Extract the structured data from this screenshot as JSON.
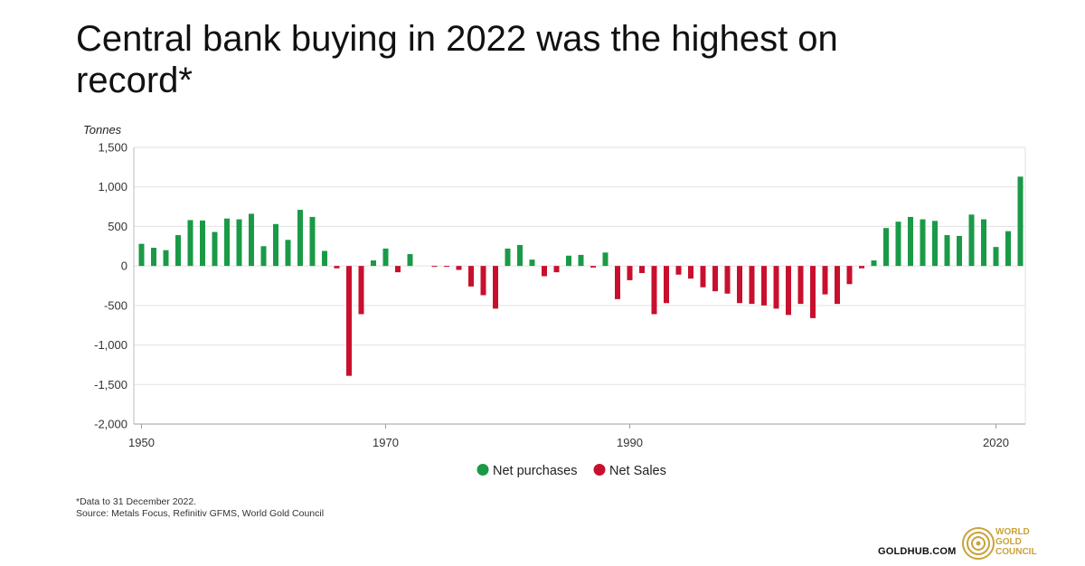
{
  "title": "Central bank buying in 2022 was the highest on record*",
  "footnote": {
    "line1": "*Data to 31 December 2022.",
    "line2": "Source: Metals Focus, Refinitiv GFMS, World Gold Council"
  },
  "branding": {
    "site": "GOLDHUB.COM",
    "org_line1": "WORLD",
    "org_line2": "GOLD",
    "org_line3": "COUNCIL"
  },
  "colors": {
    "positive": "#1a9a47",
    "negative": "#c8102e",
    "gold": "#c9a23a",
    "grid": "#e2e2e2"
  },
  "chart_data": {
    "type": "bar",
    "ylabel": "Tonnes",
    "ylim": [
      -2000,
      1500
    ],
    "yticks": [
      1500,
      1000,
      500,
      0,
      -500,
      -1000,
      -1500,
      -2000
    ],
    "ytick_labels": [
      "1,500",
      "1,000",
      "500",
      "0",
      "-500",
      "-1,000",
      "-1,500",
      "-2,000"
    ],
    "xticks": [
      1950,
      1970,
      1990,
      2020
    ],
    "xtick_labels": [
      "1950",
      "1970",
      "1990",
      "2020"
    ],
    "legend": [
      {
        "name": "Net purchases",
        "color": "#1a9a47"
      },
      {
        "name": "Net Sales",
        "color": "#c8102e"
      }
    ],
    "legend_position": "bottom",
    "years": [
      1950,
      1951,
      1952,
      1953,
      1954,
      1955,
      1956,
      1957,
      1958,
      1959,
      1960,
      1961,
      1962,
      1963,
      1964,
      1965,
      1966,
      1967,
      1968,
      1969,
      1970,
      1971,
      1972,
      1973,
      1974,
      1975,
      1976,
      1977,
      1978,
      1979,
      1980,
      1981,
      1982,
      1983,
      1984,
      1985,
      1986,
      1987,
      1988,
      1989,
      1990,
      1991,
      1992,
      1993,
      1994,
      1995,
      1996,
      1997,
      1998,
      1999,
      2000,
      2001,
      2002,
      2003,
      2004,
      2005,
      2006,
      2007,
      2008,
      2009,
      2010,
      2011,
      2012,
      2013,
      2014,
      2015,
      2016,
      2017,
      2018,
      2019,
      2020,
      2021,
      2022
    ],
    "values": [
      280,
      230,
      200,
      390,
      580,
      575,
      430,
      600,
      590,
      660,
      250,
      530,
      330,
      710,
      620,
      190,
      -30,
      -1390,
      -610,
      70,
      220,
      -80,
      150,
      0,
      -10,
      -10,
      -50,
      -260,
      -370,
      -540,
      220,
      265,
      80,
      -130,
      -80,
      130,
      140,
      -20,
      170,
      -420,
      -180,
      -90,
      -610,
      -470,
      -110,
      -160,
      -270,
      -320,
      -350,
      -470,
      -480,
      -500,
      -540,
      -620,
      -480,
      -660,
      -360,
      -480,
      -230,
      -30,
      70,
      480,
      560,
      620,
      590,
      570,
      390,
      380,
      650,
      590,
      240,
      440,
      1130
    ]
  }
}
